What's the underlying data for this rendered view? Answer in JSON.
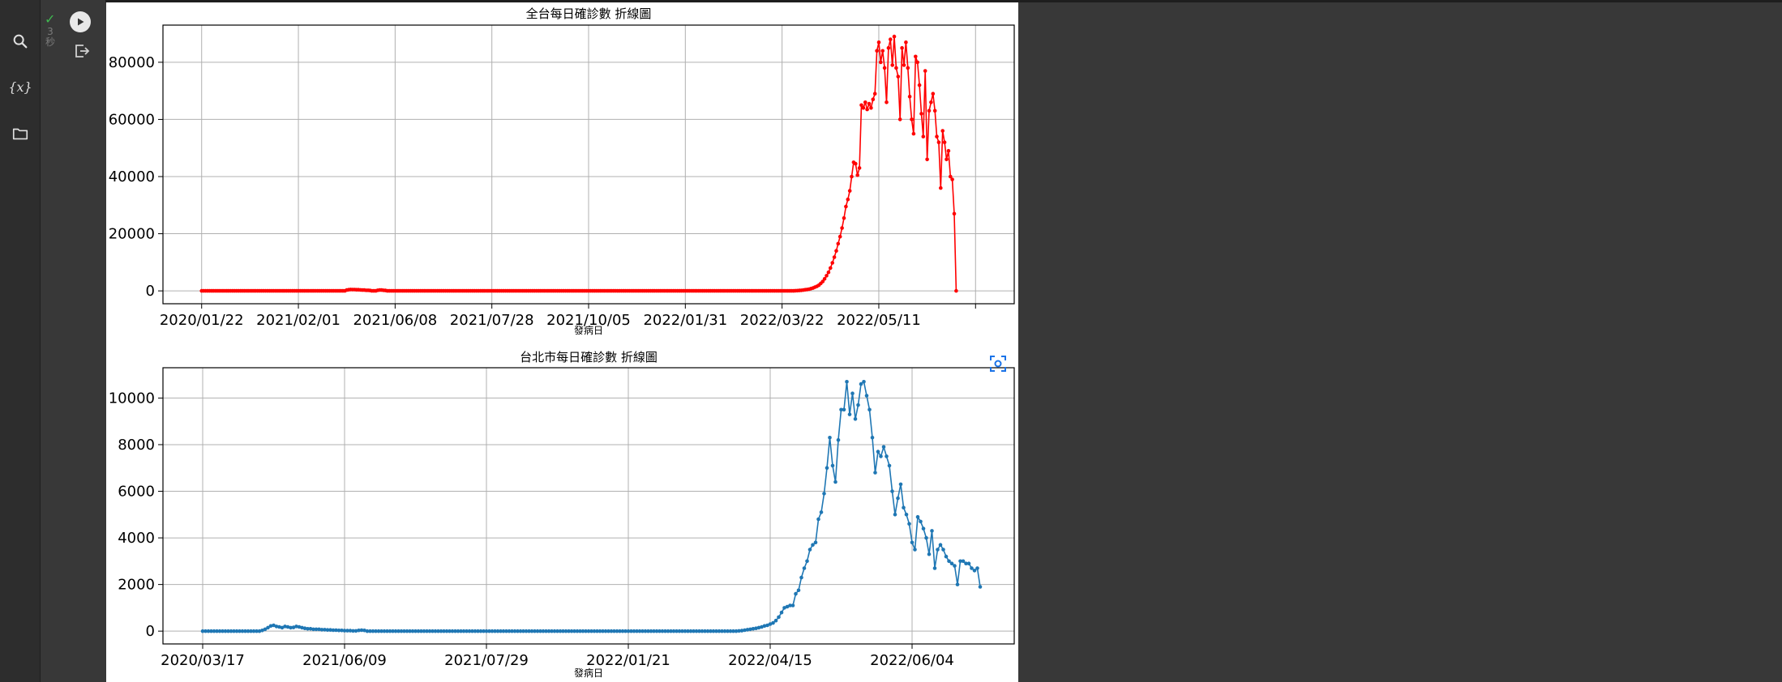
{
  "sidebar": {
    "icons": [
      "search-icon",
      "variables-icon",
      "folder-icon"
    ],
    "variables_label": "{x}"
  },
  "cell": {
    "status": "✓",
    "exec_time": "3 秒",
    "run_icon": "play-icon",
    "output_icon": "output-redirect-icon"
  },
  "colors": {
    "series_1": "#ff0000",
    "series_2": "#1f77b4",
    "background": "#383838"
  },
  "chart_data": [
    {
      "type": "line",
      "title": "全台每日確診數 折線圖",
      "xlabel": "發病日",
      "ylabel": "",
      "yticks": [
        0,
        20000,
        40000,
        60000,
        80000
      ],
      "ylim": [
        -4500,
        93000
      ],
      "xticks": [
        {
          "index": 0,
          "label": "2020/01/22"
        },
        {
          "index": 50,
          "label": "2021/02/01"
        },
        {
          "index": 100,
          "label": "2021/06/08"
        },
        {
          "index": 150,
          "label": "2021/07/28"
        },
        {
          "index": 200,
          "label": "2021/10/05"
        },
        {
          "index": 250,
          "label": "2022/01/31"
        },
        {
          "index": 300,
          "label": "2022/03/22"
        },
        {
          "index": 350,
          "label": "2022/05/11"
        },
        {
          "index": 400,
          "label": ""
        }
      ],
      "xlim": [
        -20,
        420
      ],
      "grid": true,
      "marker": "point",
      "series": [
        {
          "color": "#ff0000",
          "values": [
            0,
            0,
            0,
            0,
            0,
            0,
            0,
            0,
            0,
            0,
            0,
            0,
            0,
            0,
            0,
            0,
            0,
            0,
            0,
            0,
            0,
            0,
            0,
            0,
            0,
            0,
            0,
            0,
            0,
            0,
            0,
            0,
            0,
            0,
            0,
            0,
            0,
            0,
            0,
            0,
            0,
            0,
            0,
            0,
            0,
            0,
            0,
            0,
            0,
            0,
            0,
            0,
            0,
            0,
            0,
            0,
            0,
            0,
            0,
            0,
            0,
            0,
            0,
            0,
            0,
            0,
            0,
            0,
            0,
            0,
            0,
            0,
            0,
            0,
            0,
            300,
            400,
            500,
            450,
            450,
            400,
            400,
            350,
            300,
            300,
            200,
            200,
            150,
            0,
            0,
            0,
            200,
            300,
            300,
            200,
            150,
            0,
            0,
            0,
            0,
            0,
            0,
            0,
            0,
            0,
            0,
            0,
            0,
            0,
            0,
            0,
            0,
            0,
            0,
            0,
            0,
            0,
            0,
            0,
            0,
            0,
            0,
            0,
            0,
            0,
            0,
            0,
            0,
            0,
            0,
            0,
            0,
            0,
            0,
            0,
            0,
            0,
            0,
            0,
            0,
            0,
            0,
            0,
            0,
            0,
            0,
            0,
            0,
            0,
            0,
            0,
            0,
            0,
            0,
            0,
            0,
            0,
            0,
            0,
            0,
            0,
            0,
            0,
            0,
            0,
            0,
            0,
            0,
            0,
            0,
            0,
            0,
            0,
            0,
            0,
            0,
            0,
            0,
            0,
            0,
            0,
            0,
            0,
            0,
            0,
            0,
            0,
            0,
            0,
            0,
            0,
            0,
            0,
            0,
            0,
            0,
            0,
            0,
            0,
            0,
            0,
            0,
            0,
            0,
            0,
            0,
            0,
            0,
            0,
            0,
            0,
            0,
            0,
            0,
            0,
            0,
            0,
            0,
            0,
            0,
            0,
            0,
            0,
            0,
            0,
            0,
            0,
            0,
            0,
            0,
            0,
            0,
            0,
            0,
            0,
            0,
            0,
            0,
            0,
            0,
            0,
            0,
            0,
            0,
            0,
            0,
            0,
            0,
            0,
            0,
            0,
            0,
            0,
            0,
            0,
            0,
            0,
            0,
            0,
            0,
            0,
            0,
            0,
            0,
            0,
            0,
            0,
            0,
            0,
            0,
            0,
            0,
            0,
            0,
            0,
            0,
            0,
            0,
            0,
            0,
            0,
            0,
            0,
            0,
            0,
            0,
            0,
            0,
            0,
            0,
            0,
            0,
            0,
            0,
            0,
            0,
            0,
            0,
            0,
            0,
            0,
            0,
            0,
            0,
            0,
            0,
            0,
            50,
            100,
            150,
            200,
            300,
            400,
            500,
            600,
            800,
            1000,
            1300,
            1600,
            2000,
            2600,
            3300,
            4200,
            5300,
            6500,
            8000,
            9800,
            11800,
            14000,
            16500,
            19000,
            22000,
            25500,
            29500,
            32000,
            35000,
            40000,
            45000,
            44500,
            40500,
            43000,
            65000,
            64000,
            66000,
            63500,
            65500,
            64000,
            67000,
            69000,
            84000,
            87000,
            80000,
            84000,
            78000,
            66000,
            85000,
            88000,
            79000,
            89000,
            78000,
            75000,
            60000,
            85000,
            79000,
            87000,
            78000,
            68000,
            60000,
            55000,
            82000,
            80000,
            72000,
            62000,
            54000,
            77000,
            46000,
            63000,
            66000,
            69000,
            63000,
            54000,
            52000,
            36000,
            56000,
            52000,
            46000,
            49000,
            40000,
            39000,
            27000,
            0
          ]
        }
      ]
    },
    {
      "type": "line",
      "title": "台北市每日確診數 折線圖",
      "xlabel": "發病日",
      "ylabel": "",
      "yticks": [
        0,
        2000,
        4000,
        6000,
        8000,
        10000
      ],
      "ylim": [
        -550,
        11300
      ],
      "xticks": [
        {
          "index": 0,
          "label": "2020/03/17"
        },
        {
          "index": 50,
          "label": "2021/06/09"
        },
        {
          "index": 100,
          "label": "2021/07/29"
        },
        {
          "index": 150,
          "label": "2022/01/21"
        },
        {
          "index": 200,
          "label": "2022/04/15"
        },
        {
          "index": 250,
          "label": "2022/06/04"
        }
      ],
      "xlim": [
        -14,
        286
      ],
      "grid": true,
      "marker": "point",
      "series": [
        {
          "color": "#1f77b4",
          "values": [
            0,
            0,
            0,
            0,
            0,
            0,
            0,
            0,
            0,
            0,
            0,
            0,
            0,
            0,
            0,
            0,
            0,
            0,
            0,
            0,
            0,
            30,
            80,
            150,
            220,
            250,
            200,
            180,
            150,
            200,
            180,
            150,
            160,
            200,
            180,
            150,
            120,
            100,
            100,
            80,
            80,
            80,
            60,
            60,
            50,
            50,
            40,
            40,
            30,
            30,
            20,
            20,
            20,
            10,
            10,
            30,
            40,
            30,
            0,
            0,
            0,
            0,
            0,
            0,
            0,
            0,
            0,
            0,
            0,
            0,
            0,
            0,
            0,
            0,
            0,
            0,
            0,
            0,
            0,
            0,
            0,
            0,
            0,
            0,
            0,
            0,
            0,
            0,
            0,
            0,
            0,
            0,
            0,
            0,
            0,
            0,
            0,
            0,
            0,
            0,
            0,
            0,
            0,
            0,
            0,
            0,
            0,
            0,
            0,
            0,
            0,
            0,
            0,
            0,
            0,
            0,
            0,
            0,
            0,
            0,
            0,
            0,
            0,
            0,
            0,
            0,
            0,
            0,
            0,
            0,
            0,
            0,
            0,
            0,
            0,
            0,
            0,
            0,
            0,
            0,
            0,
            0,
            0,
            0,
            0,
            0,
            0,
            0,
            0,
            0,
            0,
            0,
            0,
            0,
            0,
            0,
            0,
            0,
            0,
            0,
            0,
            0,
            0,
            0,
            0,
            0,
            0,
            0,
            0,
            0,
            0,
            0,
            0,
            0,
            0,
            0,
            0,
            0,
            0,
            0,
            0,
            0,
            0,
            0,
            0,
            0,
            0,
            0,
            0,
            10,
            20,
            40,
            60,
            80,
            100,
            120,
            150,
            180,
            220,
            250,
            300,
            350,
            450,
            600,
            800,
            1000,
            1050,
            1100,
            1100,
            1600,
            1750,
            2300,
            2700,
            3000,
            3500,
            3700,
            3800,
            4800,
            5100,
            5900,
            7000,
            8300,
            7100,
            6400,
            8200,
            9500,
            9500,
            10700,
            9300,
            10200,
            9100,
            9700,
            10600,
            10700,
            10100,
            9500,
            8300,
            6800,
            7700,
            7500,
            7900,
            7500,
            7100,
            6000,
            5000,
            5700,
            6300,
            5300,
            5000,
            4600,
            3800,
            3500,
            4900,
            4700,
            4400,
            4000,
            3300,
            4300,
            2700,
            3500,
            3700,
            3500,
            3200,
            3000,
            2900,
            2800,
            2000,
            3000,
            3000,
            2900,
            2900,
            2700,
            2600,
            2700,
            1900
          ]
        }
      ]
    }
  ]
}
